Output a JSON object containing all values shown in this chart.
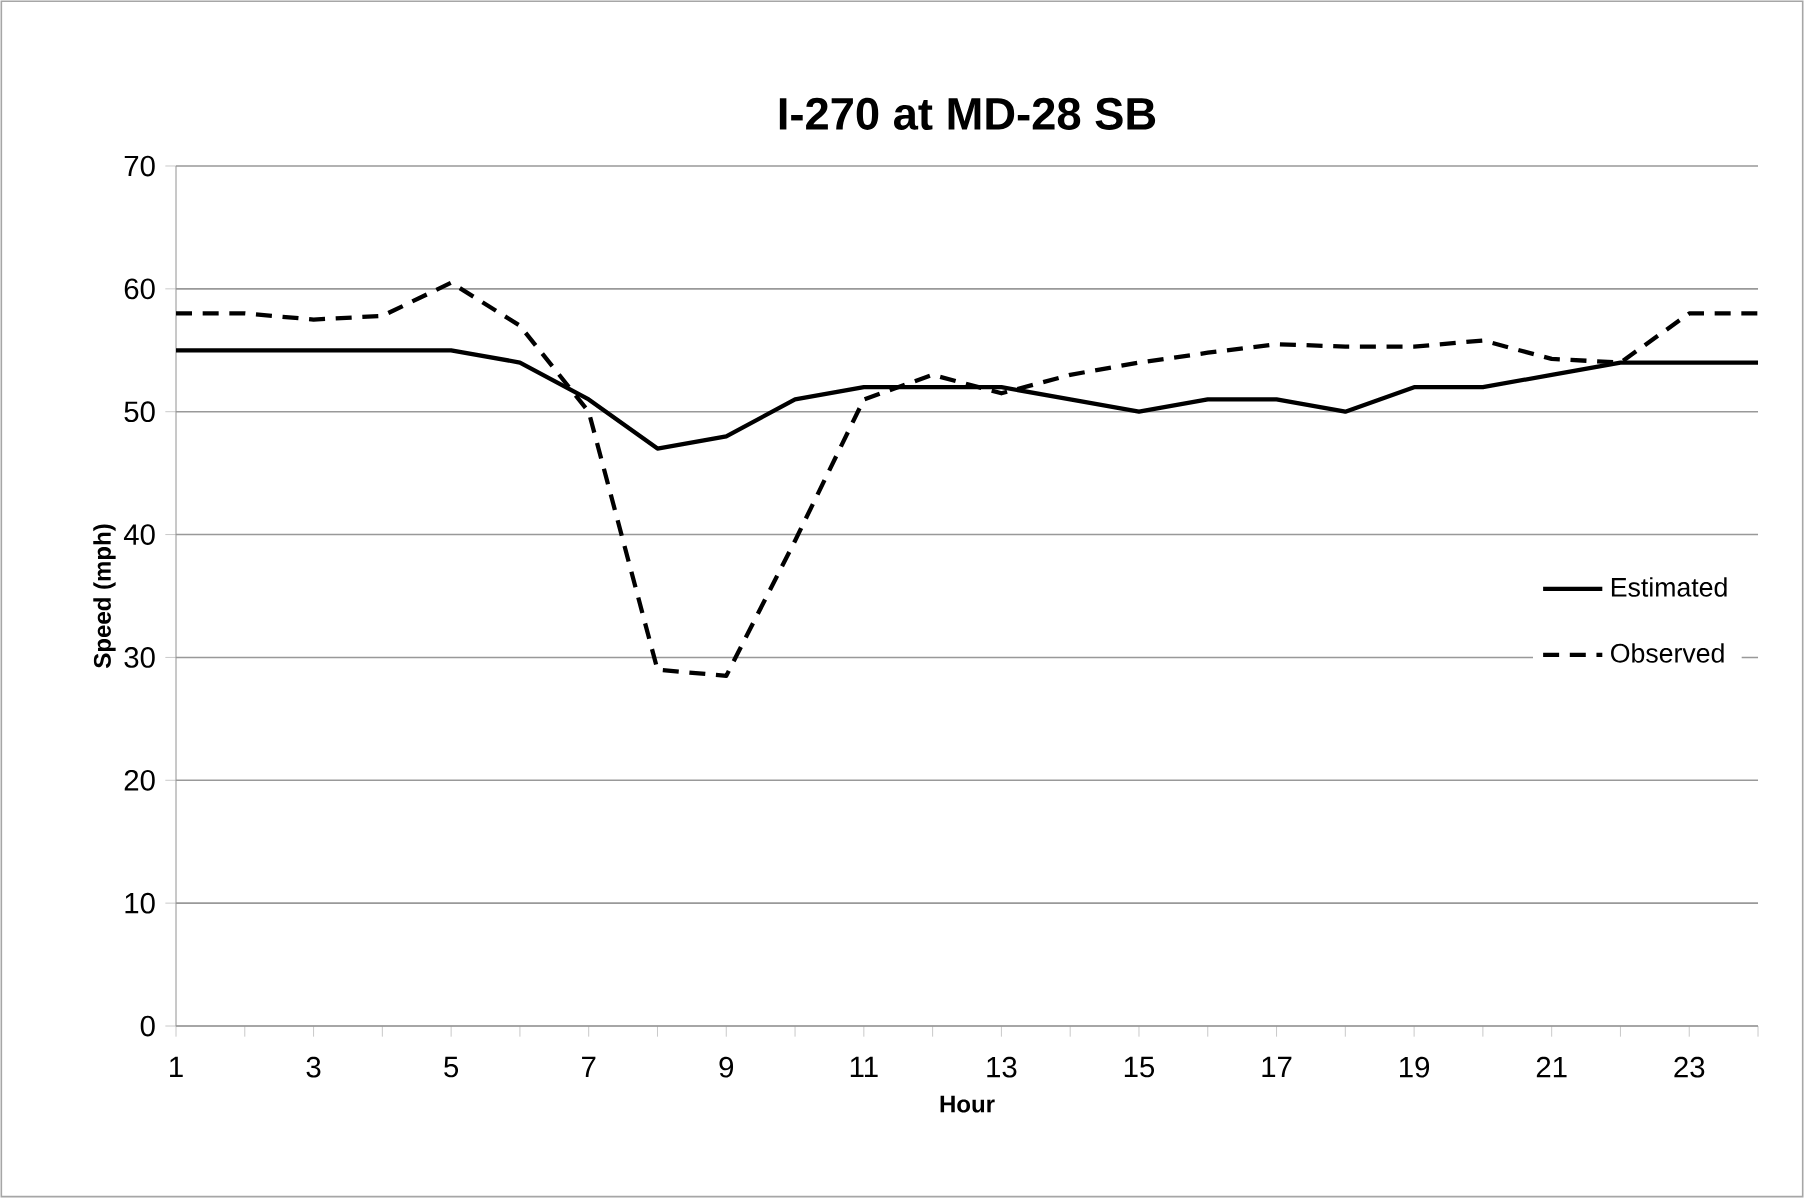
{
  "chart_data": {
    "type": "line",
    "title": "I-270 at MD-28 SB",
    "xlabel": "Hour",
    "ylabel": "Speed (mph)",
    "x": [
      1,
      2,
      3,
      4,
      5,
      6,
      7,
      8,
      9,
      10,
      11,
      12,
      13,
      14,
      15,
      16,
      17,
      18,
      19,
      20,
      21,
      22,
      23,
      24
    ],
    "series": [
      {
        "name": "Estimated",
        "color": "#000000",
        "line_style": "solid",
        "values": [
          55,
          55,
          55,
          55,
          55,
          54,
          51,
          47,
          48,
          51,
          52,
          52,
          52,
          51,
          50,
          51,
          51,
          50,
          52,
          52,
          53,
          54,
          54,
          54
        ]
      },
      {
        "name": "Observed",
        "color": "#000000",
        "line_style": "dashed",
        "values": [
          58,
          58,
          57.5,
          57.8,
          60.5,
          57,
          50,
          29,
          28.5,
          39.5,
          51,
          53,
          51.5,
          53,
          54,
          54.8,
          55.5,
          55.3,
          55.3,
          55.8,
          54.3,
          54,
          58,
          58
        ]
      }
    ],
    "xlim": [
      1,
      24
    ],
    "ylim": [
      0,
      70
    ],
    "xticks": [
      1,
      {
        "value": 2,
        "label": null
      },
      3,
      {
        "value": 4,
        "label": null
      },
      5,
      {
        "value": 6,
        "label": null
      },
      7,
      {
        "value": 8,
        "label": null
      },
      9,
      {
        "value": 10,
        "label": null
      },
      11,
      {
        "value": 12,
        "label": null
      },
      13,
      {
        "value": 14,
        "label": null
      },
      15,
      {
        "value": 16,
        "label": null
      },
      17,
      {
        "value": 18,
        "label": null
      },
      19,
      {
        "value": 20,
        "label": null
      },
      21,
      {
        "value": 22,
        "label": null
      },
      23,
      {
        "value": 24,
        "label": null
      }
    ],
    "yticks": [
      0,
      10,
      20,
      30,
      40,
      50,
      60,
      70
    ],
    "grid": "y",
    "legend": "right",
    "marker": "none"
  }
}
